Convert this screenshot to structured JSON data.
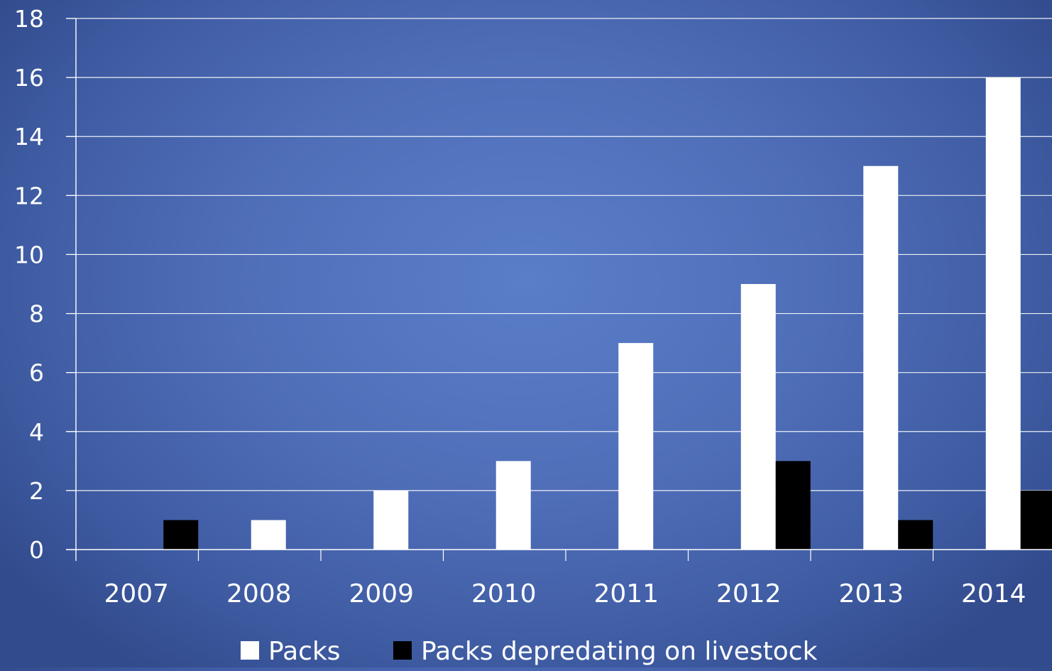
{
  "chart_data": {
    "type": "bar",
    "title": "",
    "xlabel": "",
    "ylabel": "",
    "categories": [
      "2007",
      "2008",
      "2009",
      "2010",
      "2011",
      "2012",
      "2013",
      "2014"
    ],
    "series": [
      {
        "name": "Packs",
        "color": "#ffffff",
        "values": [
          0,
          1,
          2,
          3,
          7,
          9,
          13,
          16
        ]
      },
      {
        "name": "Packs depredating on livestock",
        "color": "#000000",
        "values": [
          1,
          0,
          0,
          0,
          0,
          3,
          1,
          2
        ]
      }
    ],
    "ylim": [
      0,
      18
    ],
    "yticks": [
      "0",
      "2",
      "4",
      "6",
      "8",
      "10",
      "12",
      "14",
      "16",
      "18"
    ],
    "grid": true,
    "legend_position": "bottom",
    "colors": {
      "background": "#4f6eb8",
      "gridline": "#ffffff",
      "axis": "#ffffff",
      "text": "#ffffff"
    }
  }
}
